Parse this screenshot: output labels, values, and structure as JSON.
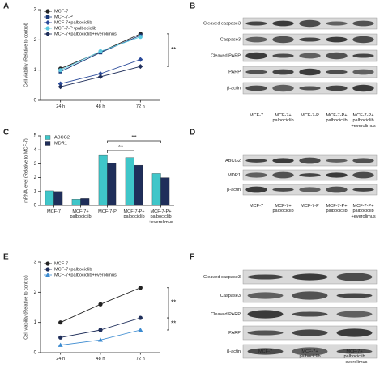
{
  "panel_labels": [
    "A",
    "B",
    "C",
    "D",
    "E",
    "F"
  ],
  "chart_data": [
    {
      "type": "line",
      "ylabel": "Cell viability (Relative to control)",
      "categories": [
        "24 h",
        "48 h",
        "72 h"
      ],
      "ylim": [
        0,
        3
      ],
      "yticks": [
        0,
        1,
        2,
        3
      ],
      "legend": "upper left",
      "annotations": [
        "**"
      ],
      "series": [
        {
          "name": "MCF-7",
          "color": "#222222",
          "marker": "circle",
          "values": [
            1.05,
            1.6,
            2.2
          ]
        },
        {
          "name": "MCF-7-P",
          "color": "#1a3a7a",
          "marker": "square",
          "values": [
            0.95,
            1.58,
            2.15
          ]
        },
        {
          "name": "MCF-7+palbociclib",
          "color": "#2a4a9a",
          "marker": "diamond",
          "values": [
            0.55,
            0.88,
            1.35
          ]
        },
        {
          "name": "MCF-7-P+palbociclib",
          "color": "#5bc8e0",
          "marker": "circle",
          "values": [
            1.0,
            1.62,
            2.1
          ]
        },
        {
          "name": "MCF-7+palbociclib+everolimus",
          "color": "#1f2e5a",
          "marker": "diamond",
          "values": [
            0.45,
            0.78,
            1.12
          ]
        }
      ]
    },
    {
      "type": "bar",
      "ylabel": "mRNA level (Relative to MCF-7)",
      "categories": [
        "MCF-7",
        "MCF-7+\npalbociclib",
        "MCF-7-P",
        "MCF-7-P+\npalbociclib",
        "MCF-7-P+\npalbociclib\n+everolimus"
      ],
      "ylim": [
        0,
        5
      ],
      "yticks": [
        0,
        1,
        2,
        3,
        4,
        5
      ],
      "legend": "upper left",
      "annotations": [
        "**",
        "**"
      ],
      "series": [
        {
          "name": "ABCG2",
          "color": "#3fc6c9",
          "values": [
            1.05,
            0.45,
            3.6,
            3.45,
            2.3
          ]
        },
        {
          "name": "MDR1",
          "color": "#1f2e5a",
          "values": [
            1.0,
            0.5,
            3.05,
            2.9,
            2.0
          ]
        }
      ]
    },
    {
      "type": "line",
      "ylabel": "Cell viability (Relative to control)",
      "categories": [
        "24 h",
        "48 h",
        "72 h"
      ],
      "ylim": [
        0,
        3
      ],
      "yticks": [
        0,
        1,
        2,
        3
      ],
      "legend": "upper left",
      "annotations": [
        "**",
        "**"
      ],
      "series": [
        {
          "name": "MCF-7",
          "color": "#222222",
          "marker": "circle",
          "values": [
            1.0,
            1.6,
            2.15
          ]
        },
        {
          "name": "MCF-7+palbociclib",
          "color": "#1f2e5a",
          "marker": "circle",
          "values": [
            0.5,
            0.75,
            1.15
          ]
        },
        {
          "name": "MCF-7+palbociclib+everolimus",
          "color": "#3a8ad0",
          "marker": "triangle",
          "values": [
            0.25,
            0.42,
            0.75
          ]
        }
      ]
    }
  ],
  "blots": [
    {
      "rows": [
        "Cleaved caspase3",
        "Caspase3",
        "Cleaved PARP",
        "PARP",
        "β-actin"
      ],
      "columns": [
        "MCF-7",
        "MCF-7+\npalbociclib",
        "MCF-7-P",
        "MCF-7-P+\npalbociclib",
        "MCF-7-P+\npalbociclib\n+everolimus"
      ]
    },
    {
      "rows": [
        "ABCG2",
        "MDR1",
        "β-actin"
      ],
      "columns": [
        "MCF-7",
        "MCF-7+\npalbociclib",
        "MCF-7-P",
        "MCF-7-P+\npalbociclib",
        "MCF-7-P+\npalbociclib\n+everolimus"
      ]
    },
    {
      "rows": [
        "Cleaved caspase3",
        "Caspase3",
        "Cleaved PARP",
        "PARP",
        "β-actin"
      ],
      "columns": [
        "MCF-7",
        "MCF-7+\npalbociclib",
        "MCF-7+\npalbociclib\n+ everolimus"
      ]
    }
  ]
}
